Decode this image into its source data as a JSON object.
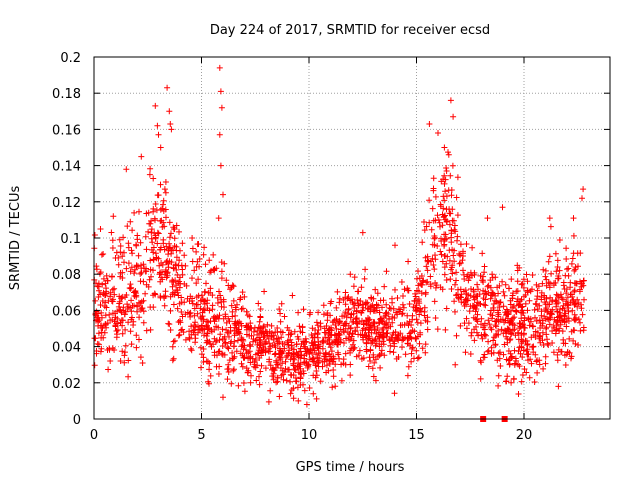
{
  "chart_data": {
    "type": "scatter",
    "title": "Day 224 of 2017, SRMTID for receiver ecsd",
    "xlabel": "GPS time / hours",
    "ylabel": "SRMTID / TECUs",
    "xlim": [
      0,
      24
    ],
    "ylim": [
      0,
      0.2
    ],
    "grid": true,
    "marker": "+",
    "color": "#ff0000",
    "x_ticks": [
      0,
      5,
      10,
      15,
      20
    ],
    "x_tick_labels": [
      "0",
      "5",
      "10",
      "15",
      "20"
    ],
    "y_ticks": [
      0,
      0.02,
      0.04,
      0.06,
      0.08,
      0.1,
      0.12,
      0.14,
      0.16,
      0.18,
      0.2
    ],
    "y_tick_labels": [
      "0",
      "0.02",
      "0.04",
      "0.06",
      "0.08",
      "0.1",
      "0.12",
      "0.14",
      "0.16",
      "0.18",
      "0.2"
    ],
    "data_span_hours": [
      0,
      22.8
    ],
    "zero_value_points": [
      {
        "x": 18.1,
        "y": 0
      },
      {
        "x": 19.1,
        "y": 0
      }
    ],
    "trend": [
      {
        "x": 0.0,
        "y": 0.062,
        "spread": 0.016
      },
      {
        "x": 1.0,
        "y": 0.062,
        "spread": 0.017
      },
      {
        "x": 2.0,
        "y": 0.068,
        "spread": 0.019
      },
      {
        "x": 2.5,
        "y": 0.083,
        "spread": 0.021
      },
      {
        "x": 3.0,
        "y": 0.095,
        "spread": 0.024
      },
      {
        "x": 3.5,
        "y": 0.085,
        "spread": 0.022
      },
      {
        "x": 4.0,
        "y": 0.072,
        "spread": 0.019
      },
      {
        "x": 5.0,
        "y": 0.06,
        "spread": 0.017
      },
      {
        "x": 6.0,
        "y": 0.055,
        "spread": 0.017
      },
      {
        "x": 7.0,
        "y": 0.042,
        "spread": 0.011
      },
      {
        "x": 8.0,
        "y": 0.038,
        "spread": 0.01
      },
      {
        "x": 9.0,
        "y": 0.036,
        "spread": 0.01
      },
      {
        "x": 10.0,
        "y": 0.034,
        "spread": 0.01
      },
      {
        "x": 11.0,
        "y": 0.042,
        "spread": 0.011
      },
      {
        "x": 12.0,
        "y": 0.052,
        "spread": 0.012
      },
      {
        "x": 13.0,
        "y": 0.052,
        "spread": 0.012
      },
      {
        "x": 14.0,
        "y": 0.05,
        "spread": 0.012
      },
      {
        "x": 15.0,
        "y": 0.055,
        "spread": 0.013
      },
      {
        "x": 15.5,
        "y": 0.08,
        "spread": 0.018
      },
      {
        "x": 16.0,
        "y": 0.095,
        "spread": 0.021
      },
      {
        "x": 16.5,
        "y": 0.11,
        "spread": 0.022
      },
      {
        "x": 17.0,
        "y": 0.075,
        "spread": 0.017
      },
      {
        "x": 18.0,
        "y": 0.06,
        "spread": 0.015
      },
      {
        "x": 19.0,
        "y": 0.05,
        "spread": 0.014
      },
      {
        "x": 20.0,
        "y": 0.05,
        "spread": 0.014
      },
      {
        "x": 21.0,
        "y": 0.058,
        "spread": 0.015
      },
      {
        "x": 22.0,
        "y": 0.06,
        "spread": 0.016
      },
      {
        "x": 22.8,
        "y": 0.068,
        "spread": 0.018
      }
    ],
    "peaks": [
      {
        "x": 0.3,
        "y": 0.105
      },
      {
        "x": 1.5,
        "y": 0.138
      },
      {
        "x": 2.2,
        "y": 0.145
      },
      {
        "x": 2.6,
        "y": 0.135
      },
      {
        "x": 2.85,
        "y": 0.173
      },
      {
        "x": 2.95,
        "y": 0.162
      },
      {
        "x": 3.0,
        "y": 0.157
      },
      {
        "x": 3.1,
        "y": 0.15
      },
      {
        "x": 3.4,
        "y": 0.183
      },
      {
        "x": 3.5,
        "y": 0.17
      },
      {
        "x": 3.55,
        "y": 0.163
      },
      {
        "x": 3.6,
        "y": 0.16
      },
      {
        "x": 3.3,
        "y": 0.127
      },
      {
        "x": 5.85,
        "y": 0.194
      },
      {
        "x": 5.9,
        "y": 0.181
      },
      {
        "x": 5.95,
        "y": 0.172
      },
      {
        "x": 5.9,
        "y": 0.14
      },
      {
        "x": 5.85,
        "y": 0.157
      },
      {
        "x": 6.0,
        "y": 0.124
      },
      {
        "x": 5.8,
        "y": 0.111
      },
      {
        "x": 12.5,
        "y": 0.103
      },
      {
        "x": 14.0,
        "y": 0.096
      },
      {
        "x": 15.6,
        "y": 0.163
      },
      {
        "x": 16.0,
        "y": 0.158
      },
      {
        "x": 16.3,
        "y": 0.15
      },
      {
        "x": 16.5,
        "y": 0.146
      },
      {
        "x": 16.6,
        "y": 0.176
      },
      {
        "x": 16.7,
        "y": 0.167
      },
      {
        "x": 16.4,
        "y": 0.137
      },
      {
        "x": 15.8,
        "y": 0.133
      },
      {
        "x": 19.0,
        "y": 0.117
      },
      {
        "x": 18.3,
        "y": 0.111
      },
      {
        "x": 21.2,
        "y": 0.111
      },
      {
        "x": 22.3,
        "y": 0.111
      },
      {
        "x": 22.75,
        "y": 0.127
      },
      {
        "x": 22.7,
        "y": 0.122
      }
    ],
    "troughs": [
      {
        "x": 6.0,
        "y": 0.012
      },
      {
        "x": 9.5,
        "y": 0.01
      },
      {
        "x": 9.9,
        "y": 0.008
      },
      {
        "x": 10.2,
        "y": 0.014
      },
      {
        "x": 9.2,
        "y": 0.016
      },
      {
        "x": 19.4,
        "y": 0.02
      },
      {
        "x": 21.6,
        "y": 0.018
      },
      {
        "x": 14.6,
        "y": 0.024
      },
      {
        "x": 16.8,
        "y": 0.03
      }
    ]
  }
}
